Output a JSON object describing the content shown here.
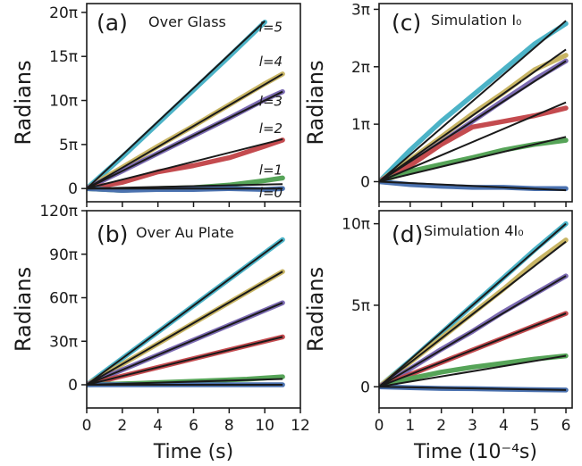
{
  "chart_data": [
    {
      "id": "a",
      "type": "line",
      "panel_label": "(a)",
      "title": "Over Glass",
      "ylabel": "Radians",
      "xlabel": "",
      "xlim": [
        0,
        12
      ],
      "ylim": [
        -1.5,
        21
      ],
      "xticks": [
        0,
        2,
        4,
        6,
        8,
        10,
        12
      ],
      "xtick_labels": [
        "",
        "",
        "",
        "",
        "",
        "",
        ""
      ],
      "yticks": [
        0,
        5,
        10,
        15,
        20
      ],
      "ytick_labels": [
        "0",
        "5π",
        "10π",
        "15π",
        "20π"
      ],
      "line_labels": [
        {
          "text": "l=5",
          "x": 11.0,
          "y": 17.8
        },
        {
          "text": "l=4",
          "x": 11.0,
          "y": 13.9
        },
        {
          "text": "l=3",
          "x": 11.0,
          "y": 9.4
        },
        {
          "text": "l=2",
          "x": 11.0,
          "y": 6.3
        },
        {
          "text": "l=1",
          "x": 11.0,
          "y": 1.6
        },
        {
          "text": "l=0",
          "x": 11.0,
          "y": -1.0
        }
      ],
      "series": [
        {
          "color": "#4cb3c7",
          "x": [
            0,
            2,
            4,
            6,
            8,
            10
          ],
          "values": [
            0,
            3.6,
            7.4,
            11.2,
            15.0,
            18.9
          ]
        },
        {
          "color": "#c8b564",
          "x": [
            0,
            2,
            4,
            6,
            8,
            10,
            11
          ],
          "values": [
            0,
            2.4,
            4.8,
            7.1,
            9.5,
            11.9,
            13.0
          ]
        },
        {
          "color": "#7c6bb2",
          "x": [
            0,
            2,
            4,
            6,
            8,
            10,
            11
          ],
          "values": [
            0,
            2.0,
            4.0,
            6.0,
            8.0,
            10.1,
            11.0
          ]
        },
        {
          "color": "#c44b4f",
          "x": [
            0,
            2,
            4,
            6,
            8,
            10,
            11
          ],
          "values": [
            0,
            0.7,
            1.9,
            2.6,
            3.5,
            4.8,
            5.5
          ]
        },
        {
          "color": "#56a458",
          "x": [
            0,
            2,
            4,
            6,
            8,
            10,
            11
          ],
          "values": [
            0,
            -0.2,
            0.0,
            0.1,
            0.4,
            0.9,
            1.2
          ]
        },
        {
          "color": "#4b72b0",
          "x": [
            0,
            2,
            4,
            6,
            8,
            10,
            11
          ],
          "values": [
            0,
            -0.2,
            -0.1,
            -0.1,
            0.0,
            -0.1,
            0.0
          ]
        }
      ],
      "fit_lines": [
        {
          "x": [
            0,
            10
          ],
          "values": [
            0,
            19.0
          ]
        },
        {
          "x": [
            0,
            11
          ],
          "values": [
            0,
            13.0
          ]
        },
        {
          "x": [
            0,
            11
          ],
          "values": [
            0,
            11.0
          ]
        },
        {
          "x": [
            0,
            11
          ],
          "values": [
            0,
            5.6
          ]
        },
        {
          "x": [
            0,
            11
          ],
          "values": [
            0,
            0.5
          ]
        },
        {
          "x": [
            0,
            11
          ],
          "values": [
            0,
            0.0
          ]
        }
      ]
    },
    {
      "id": "b",
      "type": "line",
      "panel_label": "(b)",
      "title": "Over Au Plate",
      "ylabel": "Radians",
      "xlabel": "Time (s)",
      "xlim": [
        0,
        12
      ],
      "ylim": [
        -16,
        120
      ],
      "xticks": [
        0,
        2,
        4,
        6,
        8,
        10,
        12
      ],
      "xtick_labels": [
        "0",
        "2",
        "4",
        "6",
        "8",
        "10",
        "12"
      ],
      "yticks": [
        0,
        30,
        60,
        90,
        120
      ],
      "ytick_labels": [
        "0",
        "30π",
        "60π",
        "90π",
        "120π"
      ],
      "series": [
        {
          "color": "#4cb3c7",
          "x": [
            0,
            11
          ],
          "values": [
            0,
            100.0
          ]
        },
        {
          "color": "#c8b564",
          "x": [
            0,
            11
          ],
          "values": [
            0,
            78.0
          ]
        },
        {
          "color": "#7c6bb2",
          "x": [
            0,
            11
          ],
          "values": [
            0,
            56.5
          ]
        },
        {
          "color": "#c44b4f",
          "x": [
            0,
            11
          ],
          "values": [
            0,
            33.0
          ]
        },
        {
          "color": "#56a458",
          "x": [
            0,
            3,
            6,
            9,
            11
          ],
          "values": [
            0,
            1.0,
            2.4,
            3.8,
            5.5
          ]
        },
        {
          "color": "#4b72b0",
          "x": [
            0,
            11
          ],
          "values": [
            0,
            0.0
          ]
        }
      ],
      "fit_lines": [
        {
          "x": [
            0,
            11
          ],
          "values": [
            0,
            100.0
          ]
        },
        {
          "x": [
            0,
            11
          ],
          "values": [
            0,
            78.0
          ]
        },
        {
          "x": [
            0,
            11
          ],
          "values": [
            0,
            56.5
          ]
        },
        {
          "x": [
            0,
            11
          ],
          "values": [
            0,
            33.0
          ]
        },
        {
          "x": [
            0,
            11
          ],
          "values": [
            0,
            4.0
          ]
        },
        {
          "x": [
            0,
            11
          ],
          "values": [
            0,
            0.0
          ]
        }
      ]
    },
    {
      "id": "c",
      "type": "line",
      "panel_label": "(c)",
      "title": "Simulation I₀",
      "ylabel": "Radians",
      "xlabel": "",
      "xlim": [
        0,
        6.2
      ],
      "ylim": [
        -0.35,
        3.1
      ],
      "xticks": [
        0,
        1,
        2,
        3,
        4,
        5,
        6
      ],
      "xtick_labels": [
        "",
        "",
        "",
        "",
        "",
        "",
        ""
      ],
      "yticks": [
        0,
        1,
        2,
        3
      ],
      "ytick_labels": [
        "0",
        "1π",
        "2π",
        "3π"
      ],
      "series": [
        {
          "color": "#4cb3c7",
          "x": [
            0,
            1,
            2,
            3,
            4,
            5,
            6
          ],
          "values": [
            0,
            0.55,
            1.05,
            1.5,
            1.95,
            2.4,
            2.75
          ]
        },
        {
          "color": "#c8b564",
          "x": [
            0,
            1,
            2,
            3,
            4,
            5,
            6
          ],
          "values": [
            0,
            0.38,
            0.78,
            1.18,
            1.55,
            1.95,
            2.2
          ]
        },
        {
          "color": "#7c6bb2",
          "x": [
            0,
            1,
            2,
            3,
            4,
            5,
            6
          ],
          "values": [
            0,
            0.32,
            0.68,
            1.05,
            1.42,
            1.78,
            2.1
          ]
        },
        {
          "color": "#c44b4f",
          "x": [
            0,
            1,
            2,
            3,
            4,
            5,
            6
          ],
          "values": [
            0,
            0.28,
            0.65,
            0.95,
            1.05,
            1.15,
            1.28
          ]
        },
        {
          "color": "#56a458",
          "x": [
            0,
            1,
            2,
            3,
            4,
            5,
            6
          ],
          "values": [
            0,
            0.18,
            0.3,
            0.42,
            0.55,
            0.65,
            0.72
          ]
        },
        {
          "color": "#4b72b0",
          "x": [
            0,
            1,
            2,
            3,
            4,
            5,
            6
          ],
          "values": [
            0,
            -0.05,
            -0.08,
            -0.1,
            -0.1,
            -0.12,
            -0.12
          ]
        }
      ],
      "fit_lines": [
        {
          "x": [
            0,
            6
          ],
          "values": [
            0,
            2.8
          ]
        },
        {
          "x": [
            0,
            6
          ],
          "values": [
            0,
            2.3
          ]
        },
        {
          "x": [
            0,
            6
          ],
          "values": [
            0,
            2.1
          ]
        },
        {
          "x": [
            0,
            6
          ],
          "values": [
            0,
            1.38
          ]
        },
        {
          "x": [
            0,
            6
          ],
          "values": [
            0,
            0.78
          ]
        },
        {
          "x": [
            0,
            6
          ],
          "values": [
            0,
            -0.15
          ]
        }
      ]
    },
    {
      "id": "d",
      "type": "line",
      "panel_label": "(d)",
      "title": "Simulation 4I₀",
      "ylabel": "Radians",
      "xlabel": "Time (10⁻⁴s)",
      "xlim": [
        0,
        6.2
      ],
      "ylim": [
        -1.3,
        10.8
      ],
      "xticks": [
        0,
        1,
        2,
        3,
        4,
        5,
        6
      ],
      "xtick_labels": [
        "0",
        "1",
        "2",
        "3",
        "4",
        "5",
        "6"
      ],
      "yticks": [
        0,
        5,
        10
      ],
      "ytick_labels": [
        "0",
        "5π",
        "10π"
      ],
      "series": [
        {
          "color": "#4cb3c7",
          "x": [
            0,
            1,
            2,
            3,
            4,
            5,
            6
          ],
          "values": [
            0,
            1.6,
            3.3,
            5.0,
            6.7,
            8.4,
            10.0
          ]
        },
        {
          "color": "#c8b564",
          "x": [
            0,
            1,
            2,
            3,
            4,
            5,
            6
          ],
          "values": [
            0,
            1.5,
            3.0,
            4.5,
            6.0,
            7.6,
            9.0
          ]
        },
        {
          "color": "#7c6bb2",
          "x": [
            0,
            1,
            2,
            3,
            4,
            5,
            6
          ],
          "values": [
            0,
            1.1,
            2.3,
            3.4,
            4.6,
            5.7,
            6.8
          ]
        },
        {
          "color": "#c44b4f",
          "x": [
            0,
            1,
            2,
            3,
            4,
            5,
            6
          ],
          "values": [
            0,
            0.75,
            1.5,
            2.25,
            3.0,
            3.75,
            4.5
          ]
        },
        {
          "color": "#56a458",
          "x": [
            0,
            1,
            2,
            3,
            4,
            5,
            6
          ],
          "values": [
            0,
            0.5,
            0.9,
            1.2,
            1.45,
            1.7,
            1.9
          ]
        },
        {
          "color": "#4b72b0",
          "x": [
            0,
            1,
            2,
            3,
            4,
            5,
            6
          ],
          "values": [
            0,
            -0.05,
            -0.1,
            -0.12,
            -0.15,
            -0.18,
            -0.2
          ]
        }
      ],
      "fit_lines": [
        {
          "x": [
            0,
            6
          ],
          "values": [
            0,
            10.0
          ]
        },
        {
          "x": [
            0,
            6
          ],
          "values": [
            0,
            8.9
          ]
        },
        {
          "x": [
            0,
            6
          ],
          "values": [
            0,
            6.8
          ]
        },
        {
          "x": [
            0,
            6
          ],
          "values": [
            0,
            4.5
          ]
        },
        {
          "x": [
            0,
            6
          ],
          "values": [
            0,
            1.9
          ]
        },
        {
          "x": [
            0,
            6
          ],
          "values": [
            0,
            -0.2
          ]
        }
      ]
    }
  ],
  "colors": {
    "fit_line": "#1a1a1a",
    "axis": "#1a1a1a"
  }
}
